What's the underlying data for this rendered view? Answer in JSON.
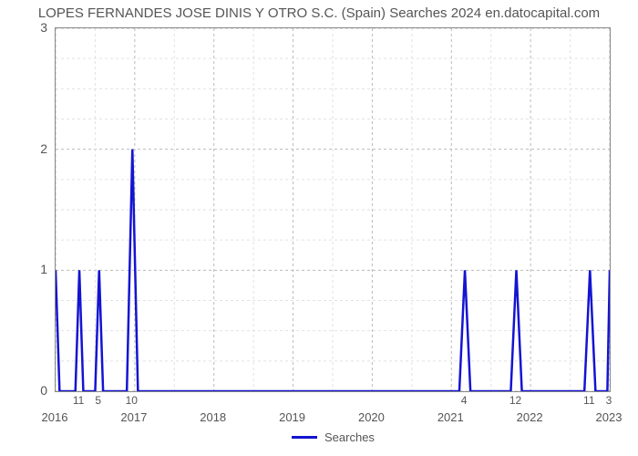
{
  "chart": {
    "type": "line",
    "title": "LOPES FERNANDES JOSE DINIS Y OTRO S.C. (Spain) Searches 2024 en.datocapital.com",
    "title_fontsize": 15,
    "title_color": "#555555",
    "background_color": "#ffffff",
    "plot_border_color": "#888888",
    "grid": {
      "color_major": "#bbbbbb",
      "color_minor": "#e2e2e2",
      "dash": "3,3"
    },
    "y": {
      "lim": [
        0,
        3
      ],
      "ticks": [
        0,
        1,
        2,
        3
      ],
      "minor_step": 0.25,
      "label_fontsize": 14,
      "label_color": "#555555"
    },
    "x": {
      "years": [
        2016,
        2017,
        2018,
        2019,
        2020,
        2021,
        2022,
        2023
      ],
      "year_span": 7,
      "label_fontsize": 13,
      "label_color": "#555555"
    },
    "series": {
      "name": "Searches",
      "line_color": "#1414d2",
      "line_width": 2.5,
      "points": [
        {
          "x": 0.0,
          "y": 1,
          "label": ""
        },
        {
          "x": 0.05,
          "y": 0,
          "label": ""
        },
        {
          "x": 0.25,
          "y": 0,
          "label": ""
        },
        {
          "x": 0.3,
          "y": 1,
          "label": "11"
        },
        {
          "x": 0.35,
          "y": 0,
          "label": ""
        },
        {
          "x": 0.5,
          "y": 0,
          "label": ""
        },
        {
          "x": 0.55,
          "y": 1,
          "label": "5"
        },
        {
          "x": 0.6,
          "y": 0,
          "label": ""
        },
        {
          "x": 0.9,
          "y": 0,
          "label": ""
        },
        {
          "x": 0.97,
          "y": 2,
          "label": "10"
        },
        {
          "x": 1.04,
          "y": 0,
          "label": ""
        },
        {
          "x": 5.1,
          "y": 0,
          "label": ""
        },
        {
          "x": 5.17,
          "y": 1,
          "label": "4"
        },
        {
          "x": 5.24,
          "y": 0,
          "label": ""
        },
        {
          "x": 5.75,
          "y": 0,
          "label": ""
        },
        {
          "x": 5.82,
          "y": 1,
          "label": "12"
        },
        {
          "x": 5.89,
          "y": 0,
          "label": ""
        },
        {
          "x": 6.68,
          "y": 0,
          "label": ""
        },
        {
          "x": 6.75,
          "y": 1,
          "label": "11"
        },
        {
          "x": 6.82,
          "y": 0,
          "label": ""
        },
        {
          "x": 6.97,
          "y": 0,
          "label": ""
        },
        {
          "x": 7.0,
          "y": 1,
          "label": "3"
        }
      ]
    },
    "legend": {
      "label": "Searches",
      "swatch_color": "#1414d2"
    }
  }
}
